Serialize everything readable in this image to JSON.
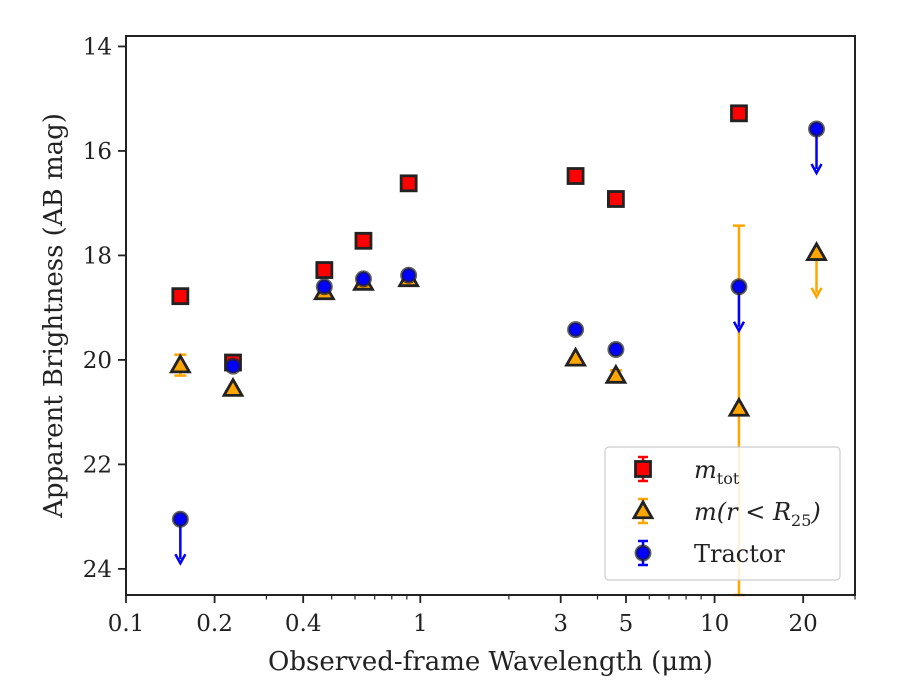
{
  "chart_data": {
    "type": "scatter",
    "title": "",
    "xlabel": "Observed-frame Wavelength (μm)",
    "ylabel": "Apparent Brightness (AB mag)",
    "x_scale": "log",
    "xlim": [
      0.1,
      30
    ],
    "ylim": [
      24.5,
      13.8
    ],
    "y_inverted": true,
    "x_ticks": [
      0.1,
      0.2,
      0.4,
      1,
      3,
      5,
      10,
      20
    ],
    "x_tick_labels": [
      "0.1",
      "0.2",
      "0.4",
      "1",
      "3",
      "5",
      "10",
      "20"
    ],
    "y_ticks": [
      14,
      16,
      18,
      20,
      22,
      24
    ],
    "y_tick_labels": [
      "14",
      "16",
      "18",
      "20",
      "22",
      "24"
    ],
    "grid": false,
    "legend_position": "lower-right",
    "series": [
      {
        "name": "m_tot",
        "legend_main": "m",
        "legend_sub": "tot",
        "color": "#ff0000",
        "marker": "square",
        "points": [
          {
            "x": 0.153,
            "y": 18.78
          },
          {
            "x": 0.231,
            "y": 20.05
          },
          {
            "x": 0.472,
            "y": 18.28
          },
          {
            "x": 0.641,
            "y": 17.72
          },
          {
            "x": 0.913,
            "y": 16.62
          },
          {
            "x": 3.37,
            "y": 16.48
          },
          {
            "x": 4.62,
            "y": 16.92
          },
          {
            "x": 12.1,
            "y": 15.28
          }
        ]
      },
      {
        "name": "m(r < R25)",
        "legend_main": "m(r < R",
        "legend_sub": "25",
        "legend_end": ")",
        "color": "#ffa500",
        "marker": "triangle",
        "points": [
          {
            "x": 0.153,
            "y": 20.1,
            "yerr": 0.2
          },
          {
            "x": 0.231,
            "y": 20.55
          },
          {
            "x": 0.472,
            "y": 18.7
          },
          {
            "x": 0.641,
            "y": 18.52
          },
          {
            "x": 0.913,
            "y": 18.45
          },
          {
            "x": 3.37,
            "y": 19.97
          },
          {
            "x": 4.62,
            "y": 20.3,
            "yerr": 0.1
          },
          {
            "x": 12.1,
            "y": 20.93,
            "yerr_low": 3.5,
            "yerr_high": 4.0
          },
          {
            "x": 22.2,
            "y": 17.95,
            "upper_limit": true
          }
        ]
      },
      {
        "name": "Tractor",
        "legend_main": "Tractor",
        "color": "#0000ff",
        "marker": "circle",
        "points": [
          {
            "x": 0.153,
            "y": 23.05,
            "upper_limit": true
          },
          {
            "x": 0.231,
            "y": 20.12
          },
          {
            "x": 0.472,
            "y": 18.6
          },
          {
            "x": 0.641,
            "y": 18.45
          },
          {
            "x": 0.913,
            "y": 18.38
          },
          {
            "x": 3.37,
            "y": 19.42
          },
          {
            "x": 4.62,
            "y": 19.8
          },
          {
            "x": 12.1,
            "y": 18.6,
            "upper_limit": true
          },
          {
            "x": 22.2,
            "y": 15.58,
            "upper_limit": true
          }
        ]
      }
    ]
  }
}
